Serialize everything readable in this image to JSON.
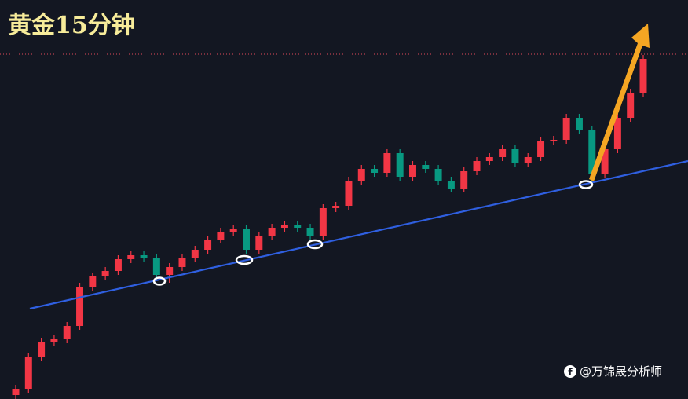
{
  "chart_data": {
    "type": "candlestick",
    "title": "黄金15分钟",
    "watermark": "@万锦晟分析师",
    "up_color": "#f23645",
    "down_color": "#089981",
    "ylim": [
      0,
      500
    ],
    "open": [
      5,
      13,
      53,
      73,
      76,
      93,
      143,
      156,
      163,
      178,
      183,
      180,
      158,
      168,
      180,
      190,
      203,
      213,
      216,
      190,
      208,
      218,
      221,
      218,
      208,
      243,
      246,
      278,
      293,
      288,
      313,
      283,
      298,
      293,
      278,
      268,
      290,
      303,
      308,
      318,
      300,
      308,
      328,
      330,
      358,
      343,
      286,
      318,
      358,
      390
    ],
    "high": [
      18,
      58,
      78,
      81,
      98,
      148,
      161,
      168,
      183,
      188,
      188,
      185,
      173,
      185,
      195,
      208,
      218,
      221,
      221,
      213,
      223,
      226,
      226,
      223,
      248,
      251,
      283,
      298,
      298,
      318,
      318,
      303,
      303,
      298,
      283,
      295,
      308,
      313,
      323,
      323,
      313,
      333,
      335,
      363,
      363,
      348,
      323,
      363,
      395,
      438
    ],
    "low": [
      0,
      8,
      48,
      68,
      71,
      88,
      138,
      151,
      158,
      173,
      175,
      153,
      148,
      163,
      175,
      185,
      198,
      208,
      185,
      185,
      203,
      213,
      213,
      203,
      203,
      238,
      241,
      273,
      283,
      283,
      278,
      278,
      288,
      273,
      263,
      263,
      285,
      298,
      303,
      295,
      295,
      303,
      323,
      325,
      338,
      275,
      281,
      313,
      353,
      385
    ],
    "close": [
      13,
      53,
      73,
      76,
      93,
      143,
      156,
      163,
      178,
      183,
      180,
      158,
      168,
      180,
      190,
      203,
      213,
      216,
      190,
      208,
      218,
      221,
      218,
      208,
      243,
      246,
      278,
      293,
      288,
      313,
      283,
      298,
      293,
      278,
      268,
      290,
      303,
      308,
      318,
      300,
      308,
      328,
      330,
      358,
      343,
      286,
      318,
      358,
      390,
      433
    ]
  }
}
